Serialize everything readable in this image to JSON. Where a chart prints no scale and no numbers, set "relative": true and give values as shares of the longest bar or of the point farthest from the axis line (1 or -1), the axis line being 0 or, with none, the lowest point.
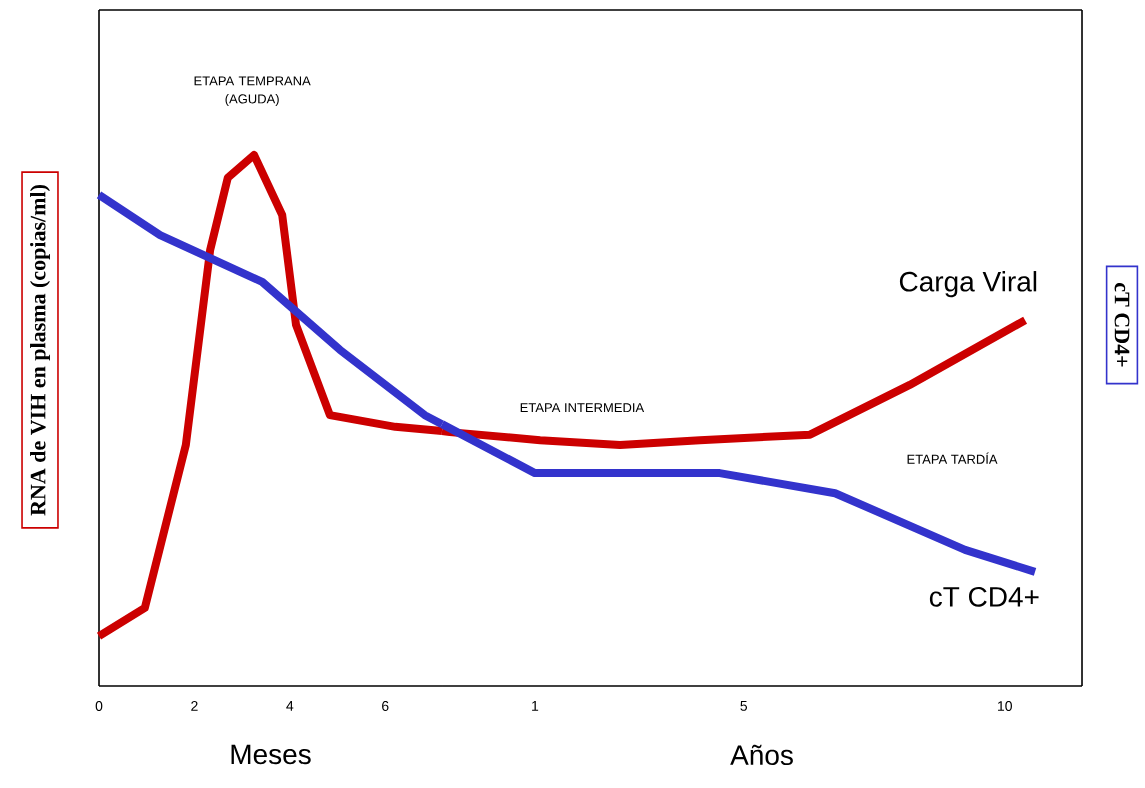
{
  "chart_data": [
    {
      "type": "line",
      "relative": true,
      "ylabel": "RNA de VIH en plasma (copias/ml)",
      "xlabel": "Meses",
      "xlim": [
        0,
        7.19
      ],
      "xticks": [
        0,
        2,
        4,
        6
      ],
      "annotations": [
        "ETAPA TEMPRANA (AGUDA)"
      ],
      "series": [
        {
          "color": "#cc0000",
          "x": [
            0,
            0.96,
            1.82,
            2.33,
            2.7,
            3.25,
            3.84,
            4.13,
            4.84,
            6.21,
            7.19
          ],
          "values": [
            0.094,
            0.147,
            0.454,
            0.821,
            0.957,
            1.0,
            0.887,
            0.68,
            0.51,
            0.488,
            0.48
          ]
        },
        {
          "color": "#3333cc",
          "x": [
            0,
            1.28,
            3.42,
            5.05,
            6.83,
            7.19
          ],
          "values": [
            0.925,
            0.849,
            0.761,
            0.633,
            0.51,
            0.493
          ]
        }
      ]
    },
    {
      "type": "line",
      "relative": true,
      "y2label": "cT CD4+",
      "xlabel": "Años",
      "xlim": [
        -0.78,
        11.48
      ],
      "xticks": [
        1,
        5,
        10
      ],
      "annotations": [
        "ETAPA INTERMEDIA",
        "ETAPA TARDÍA"
      ],
      "series": [
        {
          "name": "Carga Viral",
          "color": "#cc0000",
          "x": [
            -0.78,
            -0.63,
            1.1,
            2.63,
            4.16,
            6.27,
            8.18,
            10.39
          ],
          "values": [
            0.697,
            0.694,
            0.672,
            0.659,
            0.672,
            0.687,
            0.823,
            1.0
          ]
        },
        {
          "name": "cT CD4+",
          "color": "#3333cc",
          "x": [
            -0.78,
            1.0,
            4.54,
            6.75,
            9.24,
            10.58
          ],
          "values": [
            0.716,
            0.582,
            0.582,
            0.527,
            0.372,
            0.312
          ]
        }
      ]
    }
  ]
}
